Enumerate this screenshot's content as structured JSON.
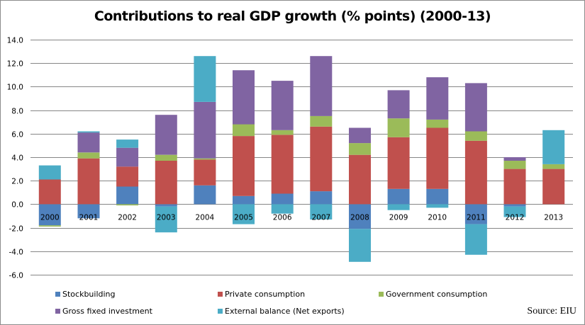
{
  "chart_data": {
    "type": "bar",
    "stacked": true,
    "title": "Contributions to real GDP growth (% points) (2000-13)",
    "xlabel": "",
    "ylabel": "",
    "ylim": [
      -6,
      14
    ],
    "ytick_step": 2,
    "yticks": [
      "14.0",
      "12.0",
      "10.0",
      "8.0",
      "6.0",
      "4.0",
      "2.0",
      "0.0",
      "-2.0",
      "-4.0",
      "-6.0"
    ],
    "grid": true,
    "legend_position": "bottom",
    "categories": [
      "2000",
      "2001",
      "2002",
      "2003",
      "2004",
      "2005",
      "2006",
      "2007",
      "2008",
      "2009",
      "2010",
      "2011",
      "2012",
      "2013"
    ],
    "series": [
      {
        "name": "Stockbuilding",
        "color": "#4f81bd",
        "values": [
          -1.8,
          -1.2,
          1.5,
          -0.2,
          1.6,
          0.7,
          0.9,
          1.1,
          -2.1,
          1.3,
          1.3,
          -1.7,
          -0.2,
          0.0
        ]
      },
      {
        "name": "Private consumption",
        "color": "#c0504d",
        "values": [
          2.1,
          3.9,
          1.7,
          3.7,
          2.2,
          5.1,
          5.0,
          5.5,
          4.2,
          4.4,
          5.2,
          5.4,
          3.0,
          3.0
        ]
      },
      {
        "name": "Government  consumption",
        "color": "#9bbb59",
        "values": [
          -0.1,
          0.5,
          -0.1,
          0.5,
          0.1,
          1.0,
          0.4,
          0.9,
          1.0,
          1.6,
          0.7,
          0.8,
          0.7,
          0.4
        ]
      },
      {
        "name": "Gross fixed investment",
        "color": "#8064a2",
        "values": [
          0.0,
          1.7,
          1.6,
          3.4,
          4.8,
          4.6,
          4.2,
          5.1,
          1.3,
          2.4,
          3.6,
          4.1,
          0.3,
          0.0
        ]
      },
      {
        "name": "External balance (Net exports)",
        "color": "#4bacc6",
        "values": [
          1.2,
          0.1,
          0.7,
          -2.2,
          3.9,
          -1.7,
          -0.8,
          -1.3,
          -2.8,
          -0.5,
          -0.3,
          -2.6,
          -0.9,
          2.9
        ]
      }
    ],
    "source": "Source: EIU"
  },
  "legend": {
    "items": [
      {
        "label": "Stockbuilding",
        "color": "#4f81bd"
      },
      {
        "label": "Private consumption",
        "color": "#c0504d"
      },
      {
        "label": "Government  consumption",
        "color": "#9bbb59"
      },
      {
        "label": "Gross fixed investment",
        "color": "#8064a2"
      },
      {
        "label": "External balance (Net exports)",
        "color": "#4bacc6"
      }
    ]
  },
  "gridline_color": "#868686"
}
